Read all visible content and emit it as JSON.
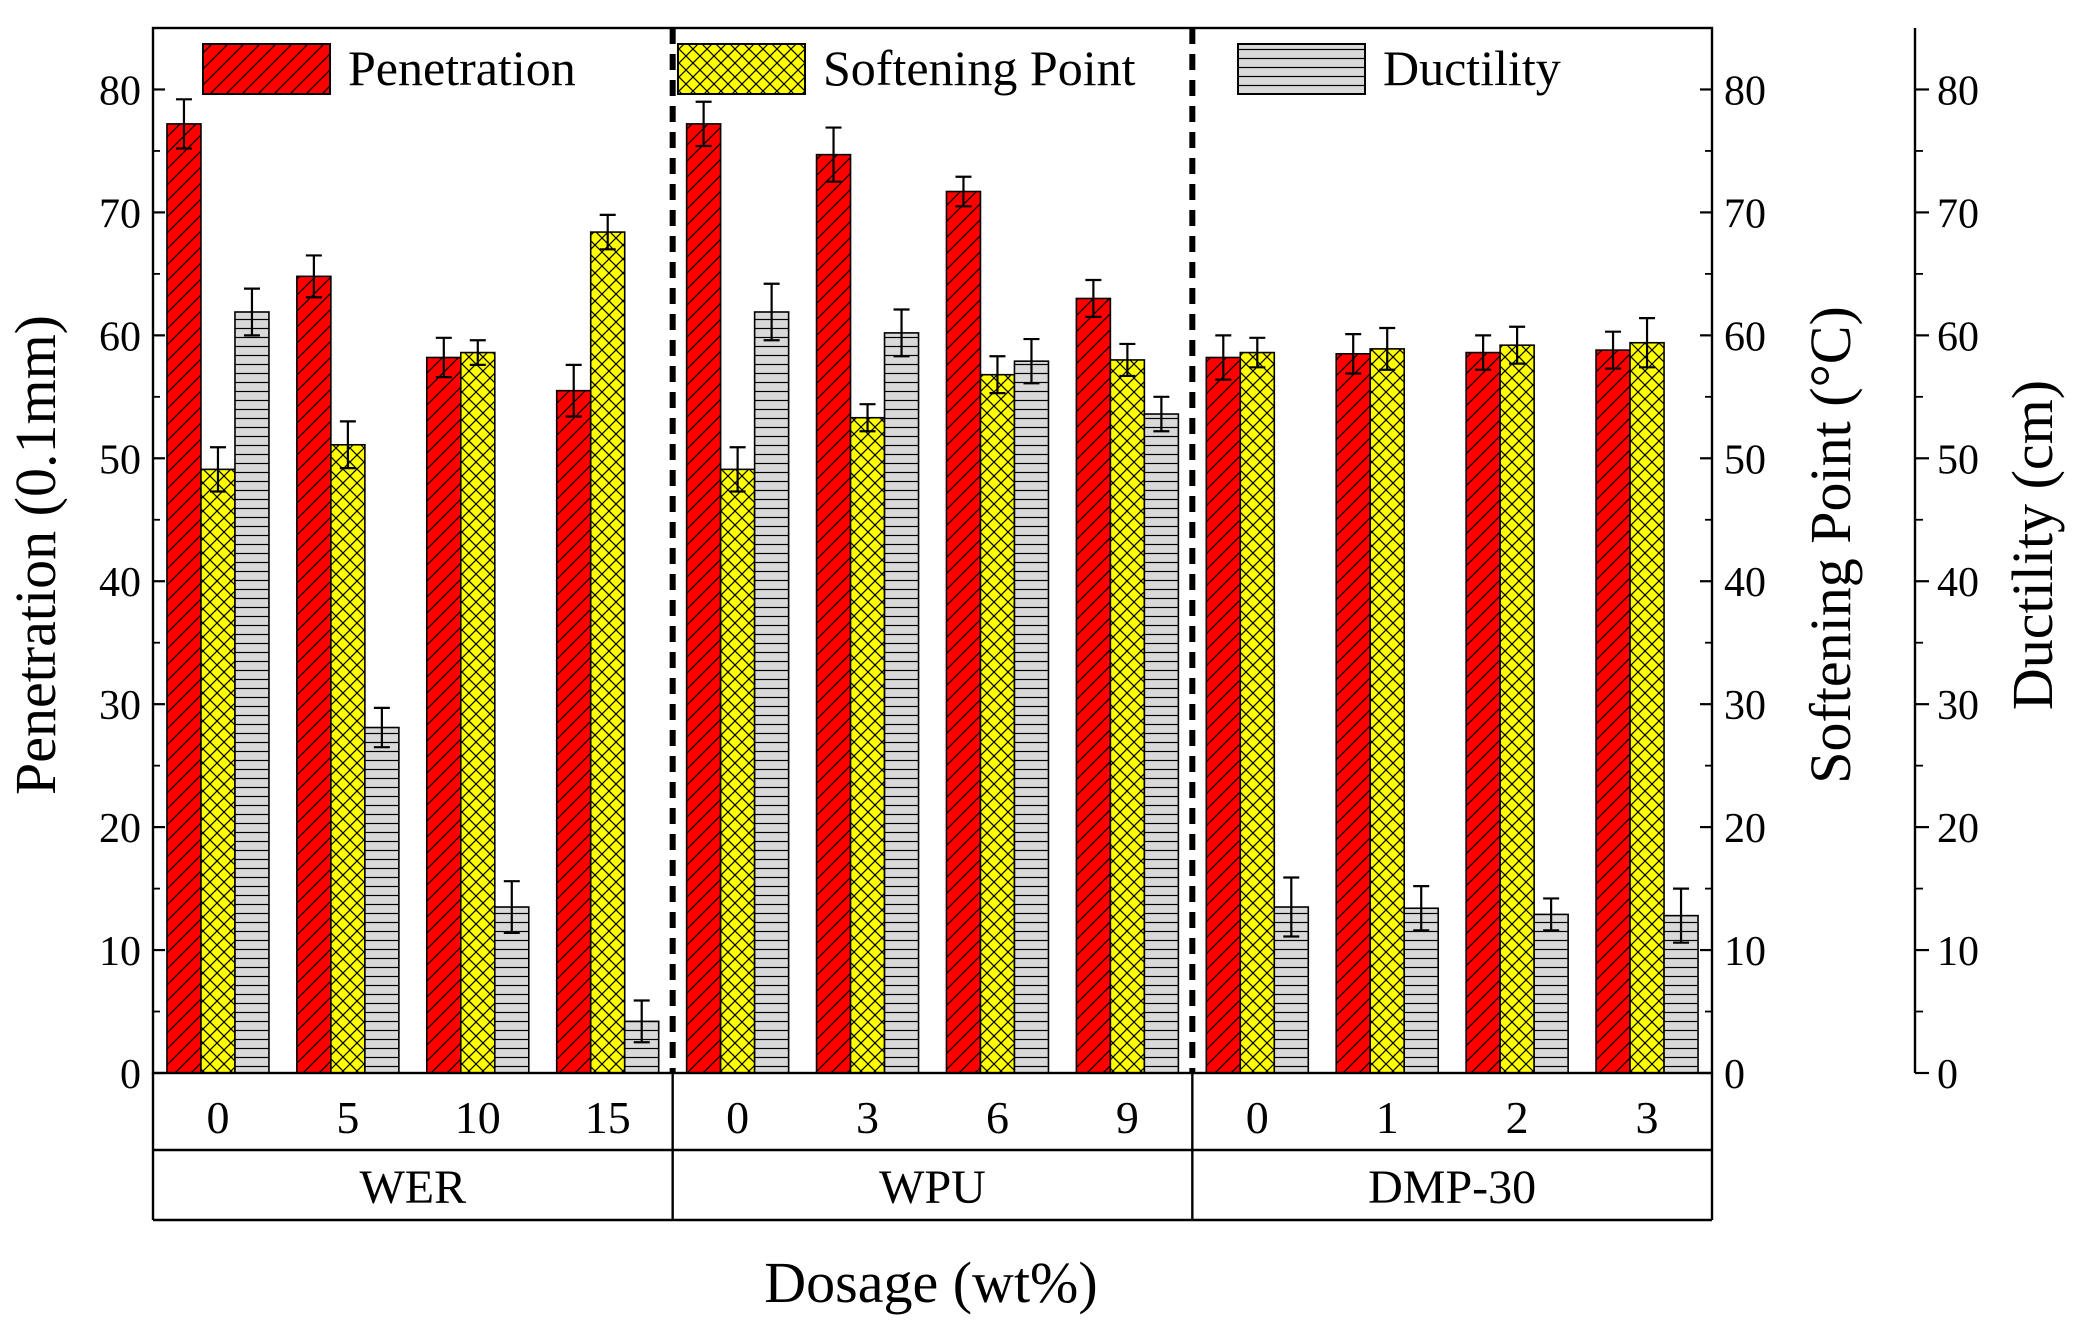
{
  "chart_data": {
    "type": "bar",
    "xlabel": "Dosage (wt%)",
    "ylabel_left": "Penetration (0.1mm)",
    "ylabel_right1": "Softening Point (°C)",
    "ylabel_right2": "Ductility (cm)",
    "ylim": [
      0,
      85
    ],
    "yticks": [
      0,
      10,
      20,
      30,
      40,
      50,
      60,
      70,
      80
    ],
    "legend_position": "top",
    "groups": [
      {
        "name": "WER",
        "categories": [
          "0",
          "5",
          "10",
          "15"
        ]
      },
      {
        "name": "WPU",
        "categories": [
          "0",
          "3",
          "6",
          "9"
        ]
      },
      {
        "name": "DMP-30",
        "categories": [
          "0",
          "1",
          "2",
          "3"
        ]
      }
    ],
    "series": [
      {
        "name": "Penetration",
        "color": "#ff0000",
        "hatch": "diagonal",
        "values": [
          77.2,
          64.8,
          58.2,
          55.5,
          77.2,
          74.7,
          71.7,
          63.0,
          58.2,
          58.5,
          58.6,
          58.8
        ],
        "errors": [
          2.0,
          1.7,
          1.6,
          2.1,
          1.8,
          2.2,
          1.2,
          1.5,
          1.8,
          1.6,
          1.4,
          1.5
        ]
      },
      {
        "name": "Softening Point",
        "color": "#ffff00",
        "hatch": "crosshatch",
        "values": [
          49.1,
          51.1,
          58.6,
          68.4,
          49.1,
          53.3,
          56.8,
          58.0,
          58.6,
          58.9,
          59.2,
          59.4
        ],
        "errors": [
          1.8,
          1.9,
          1.0,
          1.4,
          1.8,
          1.1,
          1.5,
          1.3,
          1.2,
          1.7,
          1.5,
          2.0
        ]
      },
      {
        "name": "Ductility",
        "color": "#d9d9d9",
        "hatch": "horizontal",
        "values": [
          61.9,
          28.1,
          13.5,
          4.2,
          61.9,
          60.2,
          57.9,
          53.6,
          13.5,
          13.4,
          12.9,
          12.8
        ],
        "errors": [
          1.9,
          1.6,
          2.1,
          1.7,
          2.3,
          1.9,
          1.8,
          1.4,
          2.4,
          1.8,
          1.3,
          2.2
        ]
      }
    ]
  }
}
